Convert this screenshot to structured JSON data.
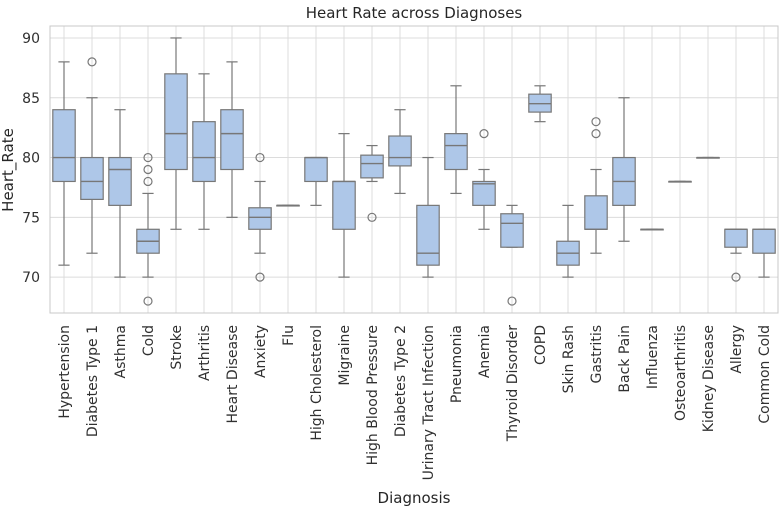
{
  "chart_data": {
    "type": "box",
    "title": "Heart Rate across Diagnoses",
    "xlabel": "Diagnosis",
    "ylabel": "Heart_Rate",
    "ylim": [
      67,
      91
    ],
    "yticks": [
      70,
      75,
      80,
      85,
      90
    ],
    "grid": true,
    "box_color": "#aec7e8",
    "line_color": "#777777",
    "categories": [
      {
        "name": "Hypertension",
        "min": 71,
        "q1": 78,
        "median": 80,
        "q3": 84,
        "max": 88,
        "outliers": []
      },
      {
        "name": "Diabetes Type 1",
        "min": 72,
        "q1": 76.5,
        "median": 78,
        "q3": 80,
        "max": 85,
        "outliers": [
          88
        ]
      },
      {
        "name": "Asthma",
        "min": 70,
        "q1": 76,
        "median": 79,
        "q3": 80,
        "max": 84,
        "outliers": []
      },
      {
        "name": "Cold",
        "min": 70,
        "q1": 72,
        "median": 73,
        "q3": 74,
        "max": 77,
        "outliers": [
          68,
          78,
          79,
          80
        ]
      },
      {
        "name": "Stroke",
        "min": 74,
        "q1": 79,
        "median": 82,
        "q3": 87,
        "max": 90,
        "outliers": []
      },
      {
        "name": "Arthritis",
        "min": 74,
        "q1": 78,
        "median": 80,
        "q3": 83,
        "max": 87,
        "outliers": []
      },
      {
        "name": "Heart Disease",
        "min": 75,
        "q1": 79,
        "median": 82,
        "q3": 84,
        "max": 88,
        "outliers": []
      },
      {
        "name": "Anxiety",
        "min": 72,
        "q1": 74,
        "median": 75,
        "q3": 75.8,
        "max": 78,
        "outliers": [
          70,
          80
        ]
      },
      {
        "name": "Flu",
        "min": 76,
        "q1": 76,
        "median": 76,
        "q3": 76,
        "max": 76,
        "outliers": []
      },
      {
        "name": "High Cholesterol",
        "min": 76,
        "q1": 78,
        "median": 80,
        "q3": 80,
        "max": 80,
        "outliers": []
      },
      {
        "name": "Migraine",
        "min": 70,
        "q1": 74,
        "median": 78,
        "q3": 78,
        "max": 82,
        "outliers": []
      },
      {
        "name": "High Blood Pressure",
        "min": 78,
        "q1": 78.3,
        "median": 79.5,
        "q3": 80.2,
        "max": 81,
        "outliers": [
          75
        ]
      },
      {
        "name": "Diabetes Type 2",
        "min": 77,
        "q1": 79.3,
        "median": 80,
        "q3": 81.8,
        "max": 84,
        "outliers": []
      },
      {
        "name": "Urinary Tract Infection",
        "min": 70,
        "q1": 71,
        "median": 72,
        "q3": 76,
        "max": 80,
        "outliers": []
      },
      {
        "name": "Pneumonia",
        "min": 77,
        "q1": 79,
        "median": 81,
        "q3": 82,
        "max": 86,
        "outliers": []
      },
      {
        "name": "Anemia",
        "min": 74,
        "q1": 76,
        "median": 77.8,
        "q3": 78,
        "max": 79,
        "outliers": [
          82
        ]
      },
      {
        "name": "Thyroid Disorder",
        "min": 72.5,
        "q1": 72.5,
        "median": 74.5,
        "q3": 75.3,
        "max": 76,
        "outliers": [
          68
        ]
      },
      {
        "name": "COPD",
        "min": 83,
        "q1": 83.8,
        "median": 84.5,
        "q3": 85.3,
        "max": 86,
        "outliers": []
      },
      {
        "name": "Skin Rash",
        "min": 70,
        "q1": 71,
        "median": 72,
        "q3": 73,
        "max": 76,
        "outliers": []
      },
      {
        "name": "Gastritis",
        "min": 72,
        "q1": 74,
        "median": 74,
        "q3": 76.8,
        "max": 79,
        "outliers": [
          82,
          83
        ]
      },
      {
        "name": "Back Pain",
        "min": 73,
        "q1": 76,
        "median": 78,
        "q3": 80,
        "max": 85,
        "outliers": []
      },
      {
        "name": "Influenza",
        "min": 74,
        "q1": 74,
        "median": 74,
        "q3": 74,
        "max": 74,
        "outliers": []
      },
      {
        "name": "Osteoarthritis",
        "min": 78,
        "q1": 78,
        "median": 78,
        "q3": 78,
        "max": 78,
        "outliers": []
      },
      {
        "name": "Kidney Disease",
        "min": 80,
        "q1": 80,
        "median": 80,
        "q3": 80,
        "max": 80,
        "outliers": []
      },
      {
        "name": "Allergy",
        "min": 72,
        "q1": 72.5,
        "median": 74,
        "q3": 74,
        "max": 74,
        "outliers": [
          70
        ]
      },
      {
        "name": "Common Cold",
        "min": 70,
        "q1": 72,
        "median": 74,
        "q3": 74,
        "max": 74,
        "outliers": []
      }
    ]
  }
}
